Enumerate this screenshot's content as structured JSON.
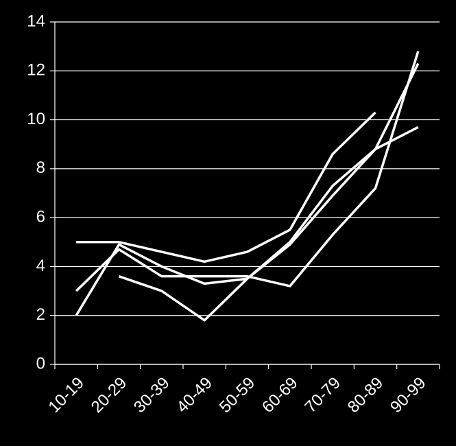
{
  "chart_data": {
    "type": "line",
    "categories": [
      "10-19",
      "20-29",
      "30-39",
      "40-49",
      "50-59",
      "60-69",
      "70-79",
      "80-89",
      "90-99"
    ],
    "series": [
      {
        "color": "#ffffff",
        "values": [
          5,
          5,
          4.6,
          4.2,
          4.6,
          5.5,
          8.6,
          10.3,
          null
        ]
      },
      {
        "color": "#ffffff",
        "values": [
          2,
          4.9,
          4.0,
          3.3,
          3.5,
          5.0,
          7.3,
          8.8,
          9.7
        ]
      },
      {
        "color": "#ffffff",
        "values": [
          3,
          4.7,
          3.6,
          3.6,
          3.6,
          3.2,
          5.3,
          7.2,
          12.8
        ]
      },
      {
        "color": "#ffffff",
        "values": [
          null,
          3.6,
          3.0,
          1.8,
          3.5,
          4.9,
          6.9,
          8.8,
          12.3
        ]
      }
    ],
    "ylim": [
      0,
      14
    ],
    "yticks": [
      0,
      2,
      4,
      6,
      8,
      10,
      12,
      14
    ],
    "grid": true
  }
}
